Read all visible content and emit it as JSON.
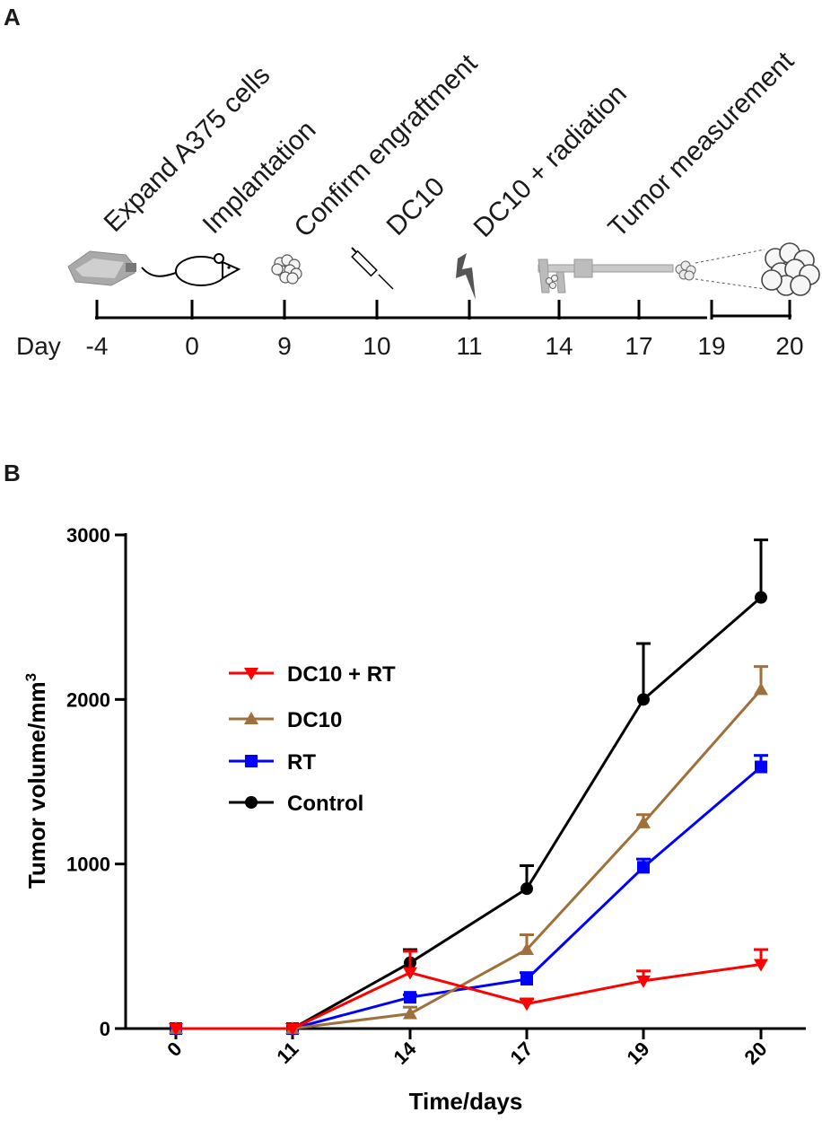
{
  "panel_a": {
    "letter": "A",
    "events": [
      {
        "label": "Expand A375 cells"
      },
      {
        "label": "Implantation"
      },
      {
        "label": "Confirm engraftment"
      },
      {
        "label": "DC10"
      },
      {
        "label": "DC10 + radiation"
      },
      {
        "label": "Tumor measurement"
      }
    ],
    "day_label": "Day",
    "days": [
      "-4",
      "0",
      "9",
      "10",
      "11",
      "14",
      "17",
      "19",
      "20"
    ],
    "icons": [
      "cell-flask-icon",
      "mouse-icon",
      "cell-cluster-icon",
      "syringe-icon",
      "lightning-icon",
      "caliper-icon",
      "small-tumor-icon",
      "large-tumor-icon"
    ]
  },
  "panel_b": {
    "letter": "B"
  },
  "chart_data": {
    "type": "line",
    "title": "",
    "xlabel": "Time/days",
    "ylabel": "Tumor volume/mm",
    "ylabel_superscript": "3",
    "categories": [
      "0",
      "11",
      "14",
      "17",
      "19",
      "20"
    ],
    "ylim": [
      0,
      3000
    ],
    "yticks": [
      "0",
      "1000",
      "2000",
      "3000"
    ],
    "grid": false,
    "legend_position": "center-left",
    "series": [
      {
        "name": "DC10 + RT",
        "color": "#ff0000",
        "marker": "triangle-down",
        "values": [
          0,
          0,
          340,
          150,
          290,
          390
        ],
        "errors": [
          0,
          0,
          130,
          30,
          60,
          90
        ]
      },
      {
        "name": "DC10",
        "color": "#a0703c",
        "marker": "triangle-up",
        "values": [
          0,
          0,
          90,
          480,
          1250,
          2060
        ],
        "errors": [
          0,
          0,
          40,
          90,
          50,
          140
        ]
      },
      {
        "name": "RT",
        "color": "#0000ff",
        "marker": "square",
        "values": [
          0,
          0,
          190,
          300,
          980,
          1590
        ],
        "errors": [
          0,
          0,
          15,
          40,
          50,
          70
        ]
      },
      {
        "name": "Control",
        "color": "#000000",
        "marker": "circle",
        "values": [
          0,
          0,
          400,
          850,
          2000,
          2620
        ],
        "errors": [
          0,
          0,
          80,
          140,
          340,
          350
        ]
      }
    ]
  }
}
